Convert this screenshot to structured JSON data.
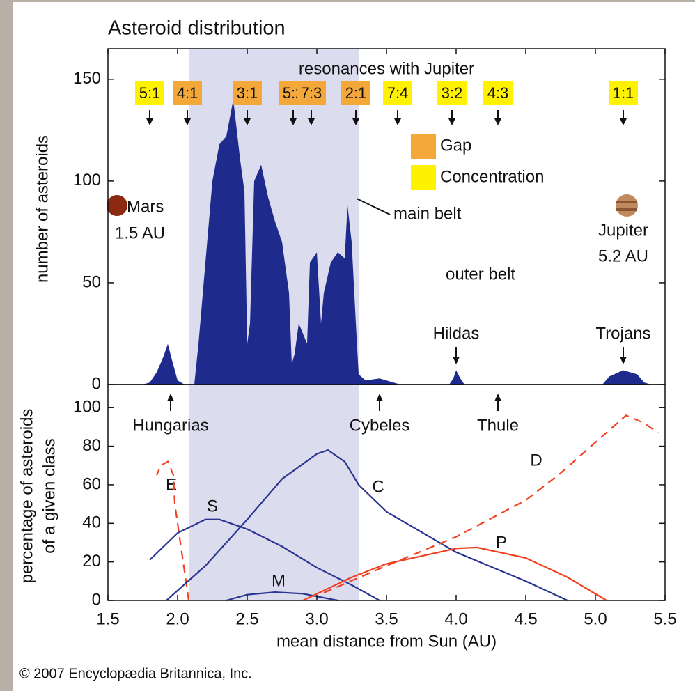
{
  "chart_data": [
    {
      "type": "area",
      "title": "Asteroid distribution",
      "ylabel": "number of asteroids",
      "color": "#1e2b8c",
      "highlight": [
        2.08,
        3.3
      ],
      "highlight_color": "#dcdcef",
      "xlim": [
        1.5,
        5.5
      ],
      "ylim": [
        0,
        165
      ],
      "yticks": [
        0,
        50,
        100,
        150
      ],
      "x": [
        1.5,
        1.75,
        1.8,
        1.85,
        1.9,
        1.93,
        1.96,
        2.0,
        2.05,
        2.12,
        2.15,
        2.2,
        2.25,
        2.3,
        2.35,
        2.4,
        2.45,
        2.48,
        2.5,
        2.52,
        2.55,
        2.6,
        2.65,
        2.7,
        2.75,
        2.8,
        2.82,
        2.84,
        2.87,
        2.9,
        2.93,
        2.95,
        3.0,
        3.03,
        3.05,
        3.1,
        3.15,
        3.2,
        3.22,
        3.25,
        3.28,
        3.3,
        3.35,
        3.45,
        3.55,
        3.6,
        3.95,
        3.98,
        4.0,
        4.03,
        4.06,
        5.05,
        5.1,
        5.2,
        5.3,
        5.35,
        5.4,
        5.5
      ],
      "values": [
        0,
        0,
        1,
        6,
        14,
        20,
        12,
        2,
        0,
        0,
        20,
        60,
        100,
        118,
        122,
        140,
        110,
        95,
        20,
        30,
        100,
        108,
        92,
        80,
        70,
        45,
        10,
        15,
        30,
        25,
        20,
        60,
        65,
        30,
        45,
        60,
        65,
        62,
        88,
        70,
        30,
        5,
        2,
        3,
        1,
        0,
        0,
        3,
        7,
        3,
        0,
        0,
        4,
        7,
        5,
        1,
        0,
        0
      ],
      "resonances": {
        "title": "resonances with Jupiter",
        "items": [
          {
            "label": "5:1",
            "x": 1.8,
            "color": "#fff200"
          },
          {
            "label": "4:1",
            "x": 2.07,
            "color": "#f5a83a"
          },
          {
            "label": "3:1",
            "x": 2.5,
            "color": "#f5a83a"
          },
          {
            "label": "5:2",
            "x": 2.83,
            "color": "#f5a83a"
          },
          {
            "label": "7:3",
            "x": 2.96,
            "color": "#f5a83a"
          },
          {
            "label": "2:1",
            "x": 3.28,
            "color": "#f5a83a"
          },
          {
            "label": "7:4",
            "x": 3.58,
            "color": "#fff200"
          },
          {
            "label": "3:2",
            "x": 3.97,
            "color": "#fff200"
          },
          {
            "label": "4:3",
            "x": 4.3,
            "color": "#fff200"
          },
          {
            "label": "1:1",
            "x": 5.2,
            "color": "#fff200"
          }
        ]
      },
      "legend": [
        {
          "name": "Gap",
          "color": "#f5a83a"
        },
        {
          "name": "Concentration",
          "color": "#fff200"
        }
      ],
      "annotations": {
        "mars": "Mars",
        "mars_dist": "1.5 AU",
        "main_belt": "main belt",
        "jupiter": "Jupiter",
        "jupiter_dist": "5.2 AU",
        "outer_belt": "outer belt"
      },
      "groups": [
        {
          "label": "Hildas",
          "x": 4.0
        },
        {
          "label": "Trojans",
          "x": 5.2
        }
      ]
    },
    {
      "type": "line",
      "xlabel": "mean distance from Sun (AU)",
      "ylabel": [
        "percentage of asteroids",
        "of a given class"
      ],
      "xlim": [
        1.5,
        5.5
      ],
      "ylim": [
        0,
        112
      ],
      "xticks": [
        1.5,
        {
          "value": 2,
          "label": "2.0"
        },
        2.5,
        {
          "value": 3,
          "label": "3.0"
        },
        3.5,
        {
          "value": 4,
          "label": "4.0"
        },
        4.5,
        {
          "value": 5,
          "label": "5.0"
        },
        5.5
      ],
      "yticks": [
        0,
        20,
        40,
        60,
        80,
        100
      ],
      "groups": [
        {
          "label": "Hungarias",
          "x": 1.95
        },
        {
          "label": "Cybeles",
          "x": 3.45
        },
        {
          "label": "Thule",
          "x": 4.3
        }
      ],
      "series": [
        {
          "name": "E",
          "color": "#f04020",
          "dash": true,
          "x": [
            2.08,
            2.03,
            1.98,
            1.97,
            1.93,
            1.88,
            1.85
          ],
          "values": [
            0,
            25,
            50,
            65,
            72,
            70,
            65
          ]
        },
        {
          "name": "S",
          "color": "#2a3590",
          "dash": false,
          "x": [
            1.8,
            2.0,
            2.2,
            2.3,
            2.5,
            2.75,
            3.0,
            3.25,
            3.45
          ],
          "values": [
            21,
            35,
            42,
            42,
            37,
            28,
            17,
            8,
            0
          ]
        },
        {
          "name": "C",
          "color": "#2a3590",
          "dash": false,
          "x": [
            1.92,
            2.2,
            2.5,
            2.75,
            3.0,
            3.08,
            3.2,
            3.3,
            3.5,
            4.0,
            4.5,
            4.8
          ],
          "values": [
            0,
            18,
            42,
            63,
            76,
            78,
            72,
            60,
            46,
            25,
            10,
            0
          ]
        },
        {
          "name": "M",
          "color": "#2a3590",
          "dash": false,
          "x": [
            2.35,
            2.5,
            2.7,
            2.9,
            3.15
          ],
          "values": [
            0,
            3,
            4.3,
            3.5,
            0
          ]
        },
        {
          "name": "P",
          "color": "#f04020",
          "dash": false,
          "x": [
            2.9,
            3.25,
            3.5,
            4.0,
            4.15,
            4.5,
            4.8,
            5.08
          ],
          "values": [
            0,
            12,
            19,
            27,
            27.5,
            22,
            12,
            0
          ]
        },
        {
          "name": "D",
          "color": "#f04020",
          "dash": true,
          "x": [
            3.05,
            3.5,
            4.0,
            4.5,
            4.75,
            5.0,
            5.22,
            5.35,
            5.45
          ],
          "values": [
            4,
            18,
            33,
            52,
            66,
            82,
            96,
            92,
            87
          ]
        }
      ]
    }
  ],
  "footer": "© 2007 Encyclopædia Britannica, Inc."
}
